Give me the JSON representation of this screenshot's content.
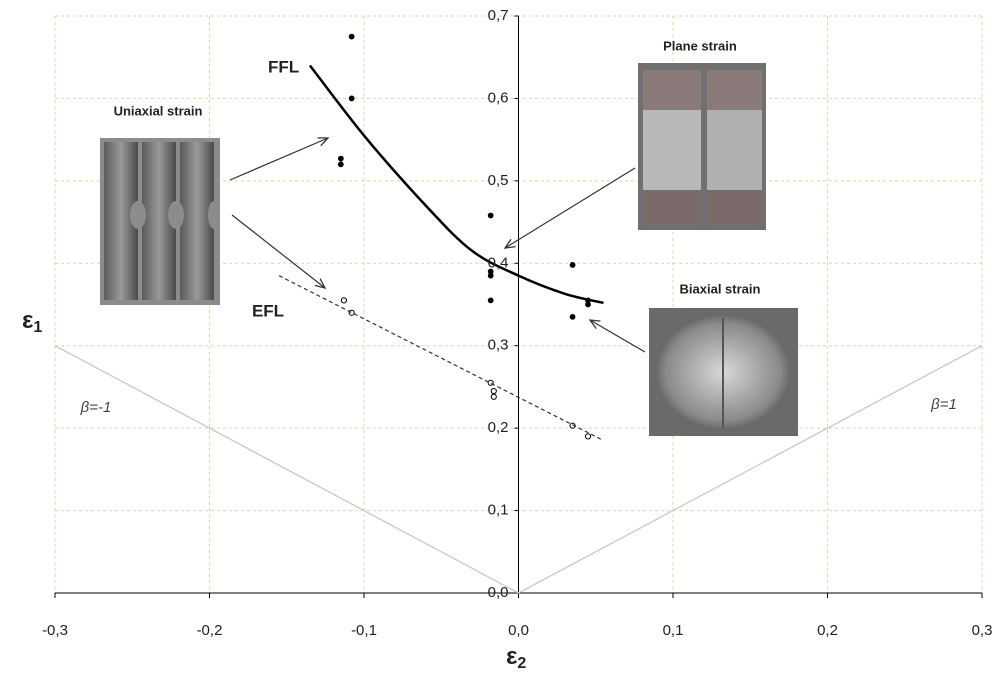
{
  "chart_data": {
    "type": "scatter",
    "x_label": {
      "symbol": "ε",
      "subscript": "2"
    },
    "y_label": {
      "symbol": "ε",
      "subscript": "1"
    },
    "xlim": [
      -0.3,
      0.3
    ],
    "ylim": [
      0,
      0.7
    ],
    "xticks": [
      {
        "value": -0.3,
        "label": "-0,3"
      },
      {
        "value": -0.2,
        "label": "-0,2"
      },
      {
        "value": -0.1,
        "label": "-0,1"
      },
      {
        "value": 0,
        "label": "0,0"
      },
      {
        "value": 0.1,
        "label": "0,1"
      },
      {
        "value": 0.2,
        "label": "0,2"
      },
      {
        "value": 0.3,
        "label": "0,3"
      }
    ],
    "yticks": [
      {
        "value": 0,
        "label": "0,0"
      },
      {
        "value": 0.1,
        "label": "0,1"
      },
      {
        "value": 0.2,
        "label": "0,2"
      },
      {
        "value": 0.3,
        "label": "0,3"
      },
      {
        "value": 0.4,
        "label": "0,4"
      },
      {
        "value": 0.5,
        "label": "0,5"
      },
      {
        "value": 0.6,
        "label": "0,6"
      },
      {
        "value": 0.7,
        "label": "0,7"
      }
    ],
    "grid": true,
    "series": [
      {
        "style": "filled-markers",
        "color": "#000000",
        "x": [
          -0.108,
          -0.108,
          -0.115,
          -0.115,
          -0.018,
          -0.018,
          -0.018,
          -0.018,
          0.035,
          0.035,
          0.045,
          0.045
        ],
        "y": [
          0.675,
          0.6,
          0.527,
          0.52,
          0.458,
          0.39,
          0.385,
          0.355,
          0.398,
          0.335,
          0.355,
          0.35
        ]
      },
      {
        "style": "open-markers",
        "color": "#000000",
        "x": [
          -0.113,
          -0.108,
          -0.018,
          -0.016,
          -0.016,
          0.035,
          0.045
        ],
        "y": [
          0.355,
          0.34,
          0.255,
          0.245,
          0.238,
          0.203,
          0.19
        ]
      },
      {
        "style": "solid-line",
        "color": "#000000",
        "x": [
          -0.135,
          -0.1,
          -0.06,
          -0.03,
          0,
          0.03,
          0.055
        ],
        "y": [
          0.64,
          0.555,
          0.47,
          0.415,
          0.385,
          0.363,
          0.352
        ]
      },
      {
        "style": "dashed-line",
        "color": "#333333",
        "x": [
          -0.155,
          0.055
        ],
        "y": [
          0.385,
          0.185
        ]
      },
      {
        "style": "thin-line",
        "color": "#c8c8c8",
        "x": [
          -0.3,
          0
        ],
        "y": [
          0.3,
          0
        ]
      },
      {
        "style": "thin-line",
        "color": "#c8c8c8",
        "x": [
          0,
          0.3
        ],
        "y": [
          0,
          0.3
        ]
      }
    ],
    "annotations": {
      "ffl": "FFL",
      "efl": "EFL",
      "beta_neg": "β=-1",
      "beta_pos": "β=1",
      "uniaxial": "Uniaxial strain",
      "plane": "Plane strain",
      "biaxial": "Biaxial strain"
    }
  }
}
